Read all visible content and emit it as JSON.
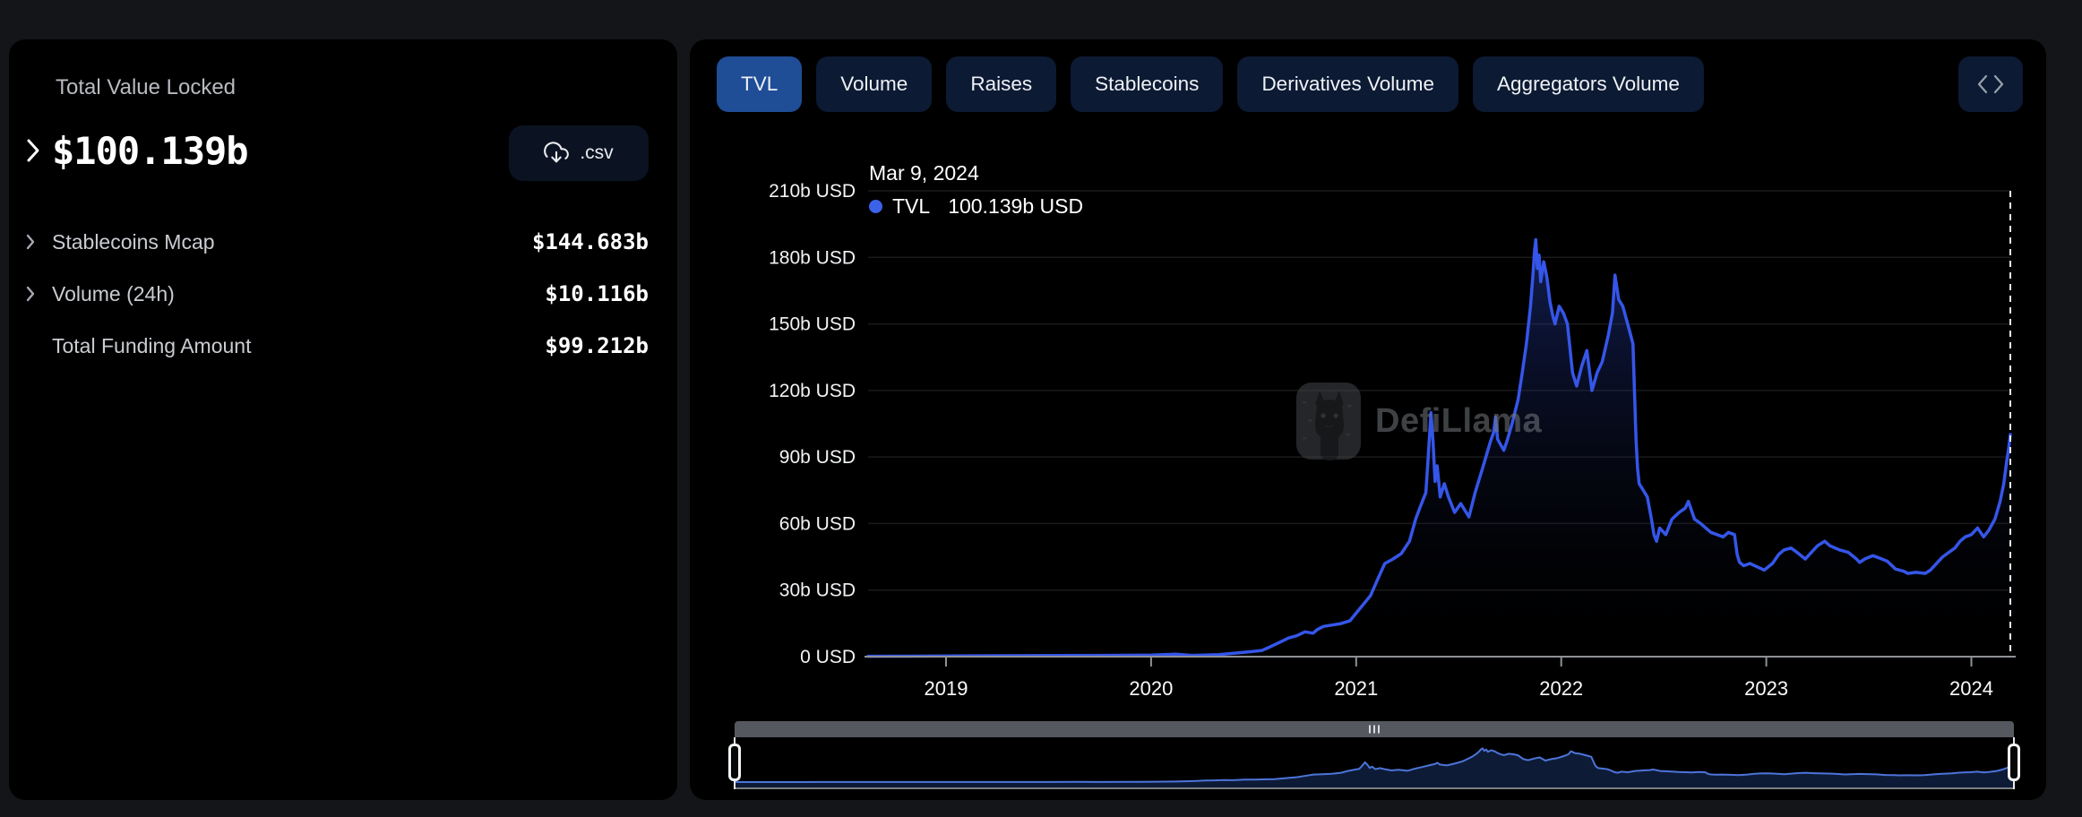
{
  "left_panel": {
    "title": "Total Value Locked",
    "main_value": "$100.139b",
    "csv_label": ".csv",
    "rows": [
      {
        "label": "Stablecoins Mcap",
        "value": "$144.683b",
        "chevron": true
      },
      {
        "label": "Volume (24h)",
        "value": "$10.116b",
        "chevron": true
      },
      {
        "label": "Total Funding Amount",
        "value": "$99.212b",
        "chevron": false
      }
    ]
  },
  "toolbar": {
    "tabs": [
      {
        "label": "TVL",
        "active": true
      },
      {
        "label": "Volume",
        "active": false
      },
      {
        "label": "Raises",
        "active": false
      },
      {
        "label": "Stablecoins",
        "active": false
      },
      {
        "label": "Derivatives Volume",
        "active": false
      },
      {
        "label": "Aggregators Volume",
        "active": false
      }
    ],
    "embed_icon": "code-embed"
  },
  "colors": {
    "accent_line": "#3556e9",
    "active_tab": "#1f4d96",
    "inactive_tab": "#0c1a33",
    "tooltip_dot": "#3b62e8",
    "area_top": "rgba(43,72,200,0.50)",
    "area_mid": "rgba(24,38,96,0.22)",
    "area_bottom": "rgba(5,8,18,0)",
    "nav_fill": "#0e1c3a",
    "nav_line": "#4d74d9"
  },
  "chart_data": {
    "type": "area",
    "title": "TVL",
    "tooltip": {
      "date": "Mar 9, 2024",
      "series_label": "TVL",
      "value_label": "100.139b USD"
    },
    "watermark": "DefiLlama",
    "grid": "horizontal",
    "legend_position": "top-left-inside",
    "unit": "b USD",
    "xlim": [
      2018.62,
      2024.19
    ],
    "ylim": [
      0,
      210
    ],
    "x_ticks": [
      2019,
      2020,
      2021,
      2022,
      2023,
      2024
    ],
    "y_ticks": [
      {
        "v": 210,
        "label": "210b USD"
      },
      {
        "v": 180,
        "label": "180b USD"
      },
      {
        "v": 150,
        "label": "150b USD"
      },
      {
        "v": 120,
        "label": "120b USD"
      },
      {
        "v": 90,
        "label": "90b USD"
      },
      {
        "v": 60,
        "label": "60b USD"
      },
      {
        "v": 30,
        "label": "30b USD"
      },
      {
        "v": 0,
        "label": "0 USD"
      }
    ],
    "current_date_marker": 2024.19,
    "navigator": {
      "enabled": true,
      "range_start": 2018.62,
      "range_end": 2024.19
    },
    "series": [
      {
        "name": "TVL",
        "color": "#3556e9",
        "points": [
          [
            2018.62,
            0.17
          ],
          [
            2018.8,
            0.2
          ],
          [
            2019,
            0.27
          ],
          [
            2019.25,
            0.42
          ],
          [
            2019.5,
            0.5
          ],
          [
            2019.75,
            0.56
          ],
          [
            2020,
            0.68
          ],
          [
            2020.12,
            1.15
          ],
          [
            2020.2,
            0.56
          ],
          [
            2020.33,
            0.9
          ],
          [
            2020.45,
            1.9
          ],
          [
            2020.54,
            2.8
          ],
          [
            2020.58,
            4.4
          ],
          [
            2020.63,
            6.6
          ],
          [
            2020.67,
            8.4
          ],
          [
            2020.71,
            9.4
          ],
          [
            2020.75,
            11.2
          ],
          [
            2020.79,
            10.6
          ],
          [
            2020.81,
            12.2
          ],
          [
            2020.84,
            13.6
          ],
          [
            2020.88,
            14.2
          ],
          [
            2020.92,
            14.8
          ],
          [
            2020.97,
            16.2
          ],
          [
            2021.03,
            23
          ],
          [
            2021.07,
            27.5
          ],
          [
            2021.11,
            36
          ],
          [
            2021.14,
            42
          ],
          [
            2021.18,
            44
          ],
          [
            2021.22,
            46.5
          ],
          [
            2021.26,
            52
          ],
          [
            2021.29,
            62
          ],
          [
            2021.31,
            67
          ],
          [
            2021.34,
            74
          ],
          [
            2021.35,
            88
          ],
          [
            2021.365,
            110
          ],
          [
            2021.375,
            97
          ],
          [
            2021.385,
            79
          ],
          [
            2021.395,
            86
          ],
          [
            2021.41,
            72
          ],
          [
            2021.43,
            78
          ],
          [
            2021.45,
            72
          ],
          [
            2021.48,
            65
          ],
          [
            2021.51,
            69
          ],
          [
            2021.55,
            63
          ],
          [
            2021.58,
            74
          ],
          [
            2021.62,
            86
          ],
          [
            2021.655,
            97
          ],
          [
            2021.67,
            101
          ],
          [
            2021.68,
            108
          ],
          [
            2021.69,
            98
          ],
          [
            2021.72,
            93
          ],
          [
            2021.735,
            97
          ],
          [
            2021.76,
            105
          ],
          [
            2021.79,
            116
          ],
          [
            2021.81,
            128
          ],
          [
            2021.83,
            141
          ],
          [
            2021.85,
            158
          ],
          [
            2021.862,
            172
          ],
          [
            2021.87,
            183
          ],
          [
            2021.876,
            188
          ],
          [
            2021.884,
            175
          ],
          [
            2021.892,
            181
          ],
          [
            2021.9,
            169
          ],
          [
            2021.915,
            178
          ],
          [
            2021.93,
            171
          ],
          [
            2021.945,
            160
          ],
          [
            2021.958,
            154
          ],
          [
            2021.97,
            150
          ],
          [
            2021.99,
            158
          ],
          [
            2022.01,
            155
          ],
          [
            2022.03,
            150
          ],
          [
            2022.055,
            128
          ],
          [
            2022.075,
            122
          ],
          [
            2022.1,
            131
          ],
          [
            2022.125,
            138
          ],
          [
            2022.15,
            120
          ],
          [
            2022.175,
            128
          ],
          [
            2022.2,
            133
          ],
          [
            2022.23,
            145
          ],
          [
            2022.25,
            155
          ],
          [
            2022.262,
            172
          ],
          [
            2022.28,
            161
          ],
          [
            2022.3,
            158
          ],
          [
            2022.33,
            148
          ],
          [
            2022.35,
            141
          ],
          [
            2022.358,
            118
          ],
          [
            2022.365,
            98
          ],
          [
            2022.372,
            85
          ],
          [
            2022.38,
            78
          ],
          [
            2022.4,
            75
          ],
          [
            2022.42,
            72
          ],
          [
            2022.44,
            62
          ],
          [
            2022.452,
            55
          ],
          [
            2022.465,
            52
          ],
          [
            2022.48,
            58
          ],
          [
            2022.51,
            55
          ],
          [
            2022.54,
            62
          ],
          [
            2022.575,
            65
          ],
          [
            2022.605,
            67
          ],
          [
            2022.62,
            70
          ],
          [
            2022.65,
            62
          ],
          [
            2022.68,
            60
          ],
          [
            2022.705,
            58
          ],
          [
            2022.73,
            56
          ],
          [
            2022.76,
            55
          ],
          [
            2022.79,
            54
          ],
          [
            2022.815,
            56
          ],
          [
            2022.845,
            55
          ],
          [
            2022.858,
            46
          ],
          [
            2022.87,
            42.5
          ],
          [
            2022.89,
            41
          ],
          [
            2022.92,
            42
          ],
          [
            2022.955,
            40.5
          ],
          [
            2022.99,
            39
          ],
          [
            2023.03,
            42
          ],
          [
            2023.06,
            46
          ],
          [
            2023.085,
            48
          ],
          [
            2023.12,
            49
          ],
          [
            2023.15,
            47
          ],
          [
            2023.19,
            44
          ],
          [
            2023.22,
            47
          ],
          [
            2023.25,
            50
          ],
          [
            2023.285,
            52
          ],
          [
            2023.31,
            50
          ],
          [
            2023.36,
            48
          ],
          [
            2023.4,
            47
          ],
          [
            2023.44,
            44
          ],
          [
            2023.455,
            42.5
          ],
          [
            2023.48,
            44
          ],
          [
            2023.52,
            45.5
          ],
          [
            2023.55,
            44.5
          ],
          [
            2023.59,
            43
          ],
          [
            2023.63,
            39.5
          ],
          [
            2023.67,
            38.5
          ],
          [
            2023.69,
            37.5
          ],
          [
            2023.73,
            38
          ],
          [
            2023.775,
            37.5
          ],
          [
            2023.8,
            39
          ],
          [
            2023.83,
            42
          ],
          [
            2023.86,
            45
          ],
          [
            2023.89,
            47
          ],
          [
            2023.92,
            49
          ],
          [
            2023.945,
            52
          ],
          [
            2023.97,
            54
          ],
          [
            2024,
            55
          ],
          [
            2024.03,
            58
          ],
          [
            2024.06,
            54
          ],
          [
            2024.085,
            57
          ],
          [
            2024.115,
            62
          ],
          [
            2024.14,
            70
          ],
          [
            2024.158,
            78
          ],
          [
            2024.172,
            88
          ],
          [
            2024.182,
            94
          ],
          [
            2024.19,
            100.139
          ]
        ]
      }
    ]
  }
}
